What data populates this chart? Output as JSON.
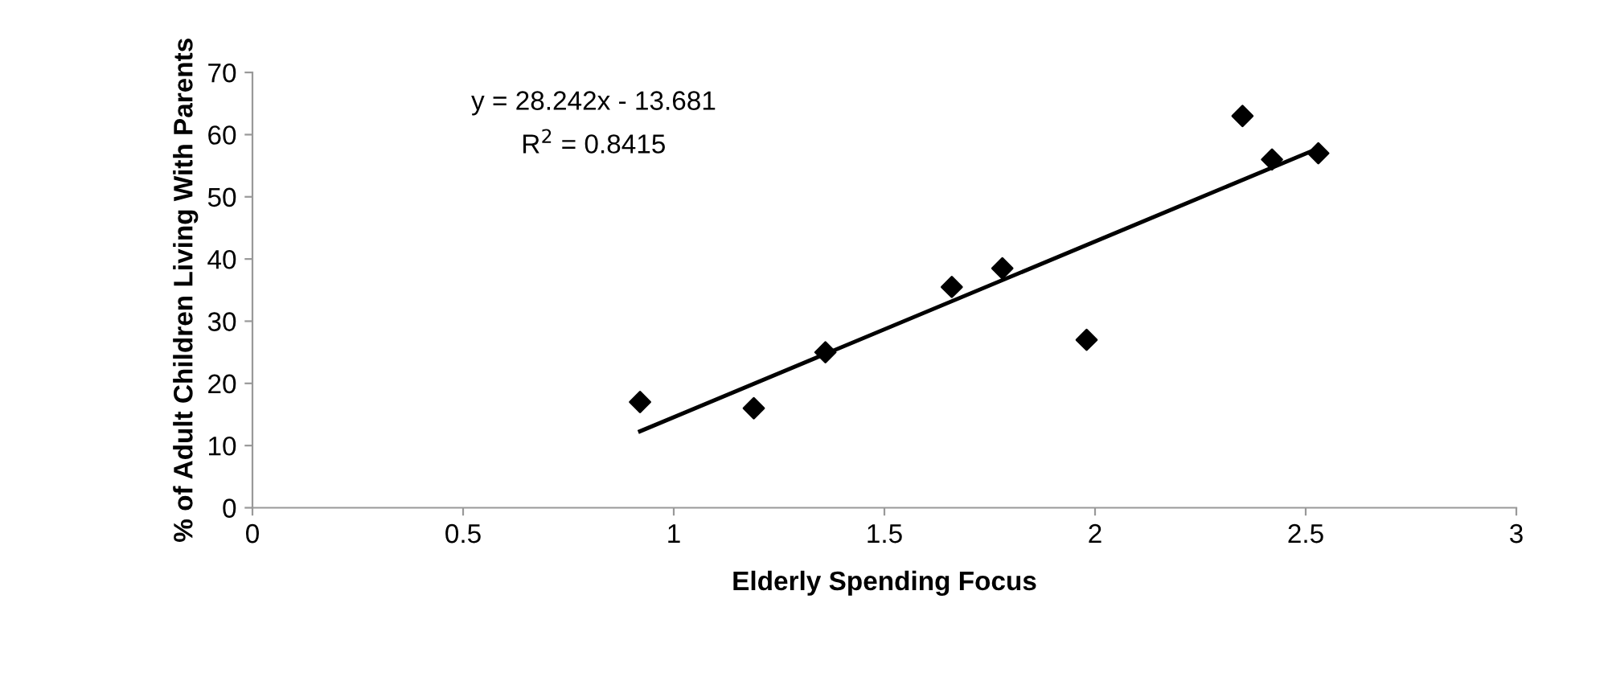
{
  "chart_data": {
    "type": "scatter",
    "xlabel": "Elderly Spending Focus",
    "ylabel": "% of Adult Children Living With Parents",
    "xlim": [
      0,
      3
    ],
    "xticks": [
      0,
      0.5,
      1,
      1.5,
      2,
      2.5,
      3
    ],
    "ylim": [
      0,
      70
    ],
    "yticks": [
      0,
      10,
      20,
      30,
      40,
      50,
      60,
      70
    ],
    "grid": false,
    "marker": "diamond",
    "annotations": [
      "y = 28.242x - 13.681",
      "R$^{2}$ = 0.8415"
    ],
    "series": [
      {
        "color": "#000000",
        "x": [
          0.92,
          1.19,
          1.36,
          1.66,
          1.78,
          1.98,
          2.35,
          2.42,
          2.53
        ],
        "values": [
          17,
          16,
          25,
          35.5,
          38.5,
          27,
          63,
          56,
          57
        ]
      },
      {
        "type": "line",
        "marker": "none",
        "color": "#000000",
        "x": [
          0.92,
          2.53
        ],
        "values": [
          12.3,
          57.8
        ]
      }
    ]
  }
}
